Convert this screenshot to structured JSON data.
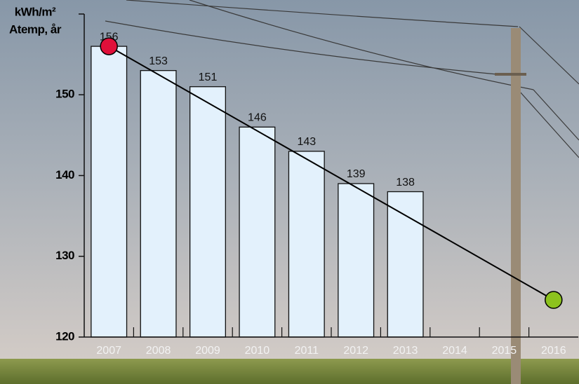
{
  "chart_data": {
    "type": "bar",
    "y_label": [
      "kWh/m²",
      "Atemp, år"
    ],
    "categories": [
      "2007",
      "2008",
      "2009",
      "2010",
      "2011",
      "2012",
      "2013",
      "2014",
      "2015",
      "2016"
    ],
    "values": [
      156,
      153,
      151,
      146,
      143,
      139,
      138,
      null,
      null,
      null
    ],
    "color": "#e3f1fc",
    "trend": {
      "categories": [
        "2007",
        "2016"
      ],
      "values": [
        156,
        124.6
      ],
      "colors": [
        "#e0103a",
        "#8cc21e"
      ]
    },
    "ylim": [
      120,
      160
    ],
    "yticks": [
      120,
      130,
      140,
      150
    ]
  }
}
